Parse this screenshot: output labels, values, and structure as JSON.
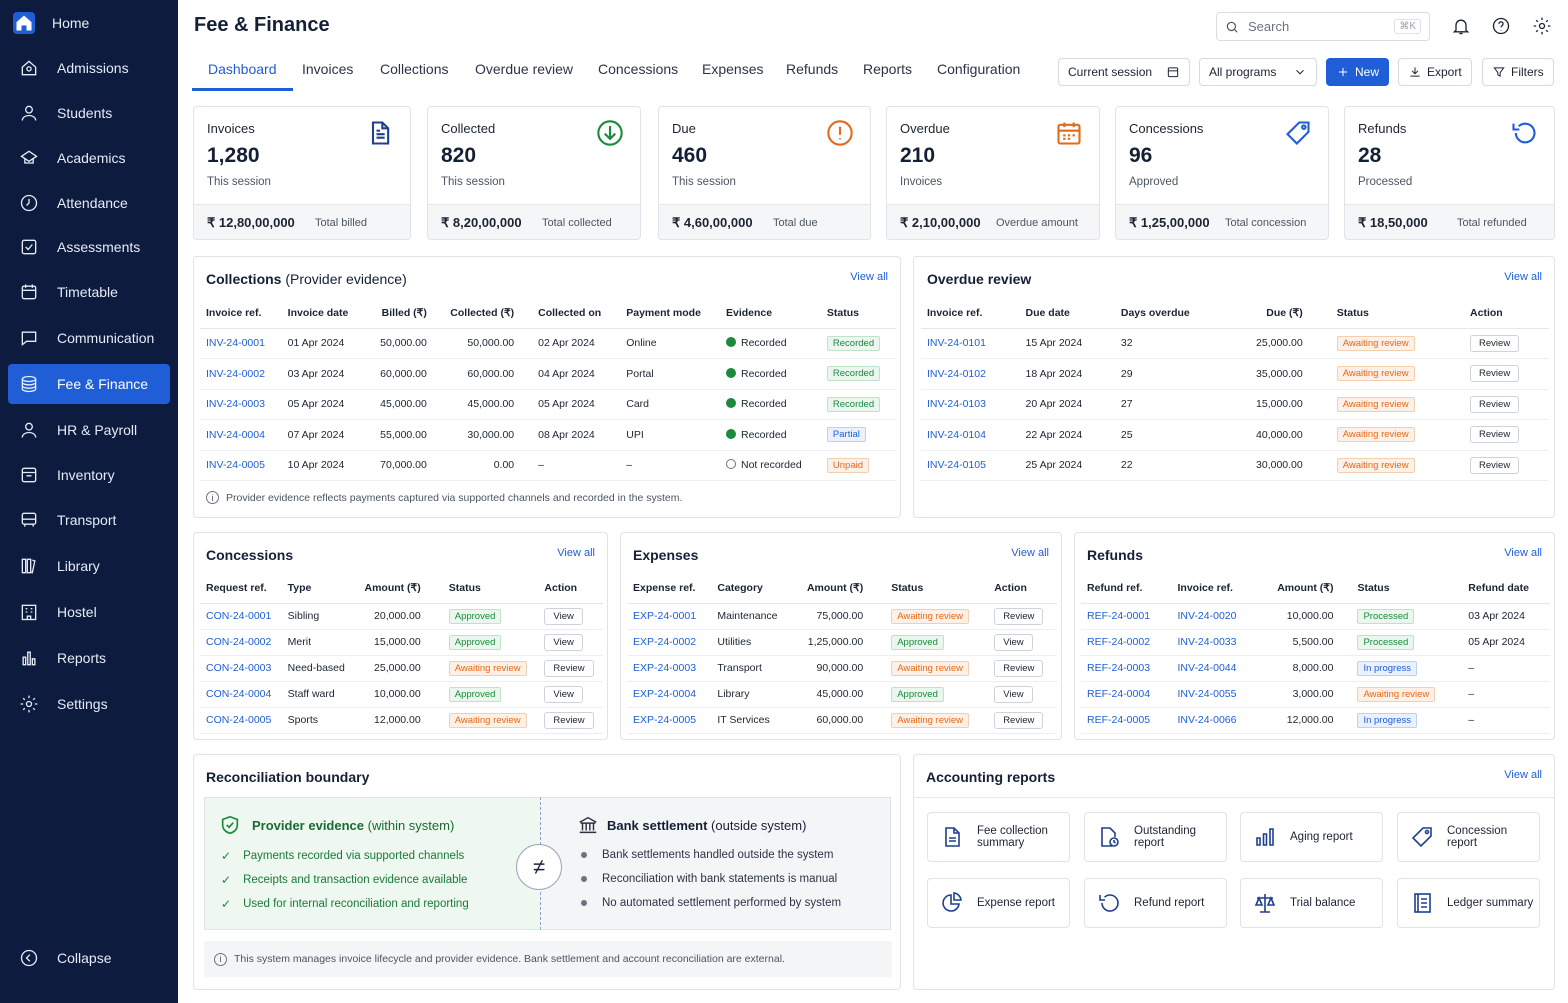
{
  "sidebar": {
    "items": [
      {
        "label": "Home",
        "icon": "home-icon"
      },
      {
        "label": "Admissions",
        "icon": "admissions-icon"
      },
      {
        "label": "Students",
        "icon": "students-icon"
      },
      {
        "label": "Academics",
        "icon": "academics-icon"
      },
      {
        "label": "Attendance",
        "icon": "attendance-icon"
      },
      {
        "label": "Assessments",
        "icon": "assessments-icon"
      },
      {
        "label": "Timetable",
        "icon": "calendar-icon"
      },
      {
        "label": "Communication",
        "icon": "chat-icon"
      },
      {
        "label": "Fee & Finance",
        "icon": "coins-icon"
      },
      {
        "label": "HR & Payroll",
        "icon": "user-icon"
      },
      {
        "label": "Inventory",
        "icon": "inventory-icon"
      },
      {
        "label": "Transport",
        "icon": "bus-icon"
      },
      {
        "label": "Library",
        "icon": "library-icon"
      },
      {
        "label": "Hostel",
        "icon": "hostel-icon"
      },
      {
        "label": "Reports",
        "icon": "bar-chart-icon"
      },
      {
        "label": "Settings",
        "icon": "gear-icon"
      }
    ],
    "collapse": "Collapse"
  },
  "header": {
    "title": "Fee & Finance",
    "search_placeholder": "Search",
    "search_shortcut": "⌘K"
  },
  "tabs": [
    "Dashboard",
    "Invoices",
    "Collections",
    "Overdue review",
    "Concessions",
    "Expenses",
    "Refunds",
    "Reports",
    "Configuration"
  ],
  "controls": {
    "session": "Current session",
    "programs": "All programs",
    "new": "New",
    "export": "Export",
    "filters": "Filters"
  },
  "kpis": [
    {
      "label": "Invoices",
      "value": "1,280",
      "sub": "This session",
      "amount": "₹ 12,80,00,000",
      "foot": "Total billed",
      "icon": "document-icon",
      "color": "#1f3f8f"
    },
    {
      "label": "Collected",
      "value": "820",
      "sub": "This session",
      "amount": "₹ 8,20,00,000",
      "foot": "Total collected",
      "icon": "download-circle-icon",
      "color": "#1b8a3c"
    },
    {
      "label": "Due",
      "value": "460",
      "sub": "This session",
      "amount": "₹ 4,60,00,000",
      "foot": "Total due",
      "icon": "alert-circle-icon",
      "color": "#e36a1a"
    },
    {
      "label": "Overdue",
      "value": "210",
      "sub": "Invoices",
      "amount": "₹ 2,10,00,000",
      "foot": "Overdue amount",
      "icon": "calendar-icon",
      "color": "#e36a1a"
    },
    {
      "label": "Concessions",
      "value": "96",
      "sub": "Approved",
      "amount": "₹ 1,25,00,000",
      "foot": "Total concession",
      "icon": "tag-icon",
      "color": "#1f5ed6"
    },
    {
      "label": "Refunds",
      "value": "28",
      "sub": "Processed",
      "amount": "₹ 18,50,000",
      "foot": "Total refunded",
      "icon": "refund-icon",
      "color": "#1f5ed6"
    }
  ],
  "collections": {
    "title": "Collections",
    "title_sub": "(Provider evidence)",
    "view_all": "View all",
    "headers": [
      "Invoice ref.",
      "Invoice date",
      "Billed (₹)",
      "Collected (₹)",
      "Collected on",
      "Payment mode",
      "Evidence",
      "Status"
    ],
    "rows": [
      [
        "INV-24-0001",
        "01 Apr 2024",
        "50,000.00",
        "50,000.00",
        "02 Apr 2024",
        "Online",
        "Recorded",
        "Recorded"
      ],
      [
        "INV-24-0002",
        "03 Apr 2024",
        "60,000.00",
        "60,000.00",
        "04 Apr 2024",
        "Portal",
        "Recorded",
        "Recorded"
      ],
      [
        "INV-24-0003",
        "05 Apr 2024",
        "45,000.00",
        "45,000.00",
        "05 Apr 2024",
        "Card",
        "Recorded",
        "Recorded"
      ],
      [
        "INV-24-0004",
        "07 Apr 2024",
        "55,000.00",
        "30,000.00",
        "08 Apr 2024",
        "UPI",
        "Recorded",
        "Partial"
      ],
      [
        "INV-24-0005",
        "10 Apr 2024",
        "70,000.00",
        "0.00",
        "–",
        "–",
        "Not recorded",
        "Unpaid"
      ]
    ],
    "note": "Provider evidence reflects payments captured via supported channels and recorded in the system."
  },
  "overdue": {
    "title": "Overdue review",
    "view_all": "View all",
    "headers": [
      "Invoice ref.",
      "Due date",
      "Days overdue",
      "Due (₹)",
      "Status",
      "Action"
    ],
    "rows": [
      [
        "INV-24-0101",
        "15 Apr 2024",
        "32",
        "25,000.00",
        "Awaiting review",
        "Review"
      ],
      [
        "INV-24-0102",
        "18 Apr 2024",
        "29",
        "35,000.00",
        "Awaiting review",
        "Review"
      ],
      [
        "INV-24-0103",
        "20 Apr 2024",
        "27",
        "15,000.00",
        "Awaiting review",
        "Review"
      ],
      [
        "INV-24-0104",
        "22 Apr 2024",
        "25",
        "40,000.00",
        "Awaiting review",
        "Review"
      ],
      [
        "INV-24-0105",
        "25 Apr 2024",
        "22",
        "30,000.00",
        "Awaiting review",
        "Review"
      ]
    ]
  },
  "concessions": {
    "title": "Concessions",
    "view_all": "View all",
    "headers": [
      "Request ref.",
      "Type",
      "Amount (₹)",
      "Status",
      "Action"
    ],
    "rows": [
      [
        "CON-24-0001",
        "Sibling",
        "20,000.00",
        "Approved",
        "View"
      ],
      [
        "CON-24-0002",
        "Merit",
        "15,000.00",
        "Approved",
        "View"
      ],
      [
        "CON-24-0003",
        "Need-based",
        "25,000.00",
        "Awaiting review",
        "Review"
      ],
      [
        "CON-24-0004",
        "Staff ward",
        "10,000.00",
        "Approved",
        "View"
      ],
      [
        "CON-24-0005",
        "Sports",
        "12,000.00",
        "Awaiting review",
        "Review"
      ]
    ]
  },
  "expenses": {
    "title": "Expenses",
    "view_all": "View all",
    "headers": [
      "Expense ref.",
      "Category",
      "Amount (₹)",
      "Status",
      "Action"
    ],
    "rows": [
      [
        "EXP-24-0001",
        "Maintenance",
        "75,000.00",
        "Awaiting review",
        "Review"
      ],
      [
        "EXP-24-0002",
        "Utilities",
        "1,25,000.00",
        "Approved",
        "View"
      ],
      [
        "EXP-24-0003",
        "Transport",
        "90,000.00",
        "Awaiting review",
        "Review"
      ],
      [
        "EXP-24-0004",
        "Library",
        "45,000.00",
        "Approved",
        "View"
      ],
      [
        "EXP-24-0005",
        "IT Services",
        "60,000.00",
        "Awaiting review",
        "Review"
      ]
    ]
  },
  "refunds": {
    "title": "Refunds",
    "view_all": "View all",
    "headers": [
      "Refund ref.",
      "Invoice ref.",
      "Amount (₹)",
      "Status",
      "Refund date"
    ],
    "rows": [
      [
        "REF-24-0001",
        "INV-24-0020",
        "10,000.00",
        "Processed",
        "03 Apr 2024"
      ],
      [
        "REF-24-0002",
        "INV-24-0033",
        "5,500.00",
        "Processed",
        "05 Apr 2024"
      ],
      [
        "REF-24-0003",
        "INV-24-0044",
        "8,000.00",
        "In progress",
        "–"
      ],
      [
        "REF-24-0004",
        "INV-24-0055",
        "3,000.00",
        "Awaiting review",
        "–"
      ],
      [
        "REF-24-0005",
        "INV-24-0066",
        "12,000.00",
        "In progress",
        "–"
      ]
    ]
  },
  "reconciliation": {
    "title": "Reconciliation boundary",
    "provider_title": "Provider evidence",
    "provider_sub": "(within system)",
    "provider_points": [
      "Payments recorded via supported channels",
      "Receipts and transaction evidence available",
      "Used for internal reconciliation and reporting"
    ],
    "bank_title": "Bank settlement",
    "bank_sub": "(outside system)",
    "bank_points": [
      "Bank settlements handled outside the system",
      "Reconciliation with bank statements is manual",
      "No automated settlement performed by system"
    ],
    "neq": "≠",
    "note": "This system manages invoice lifecycle and provider evidence. Bank settlement and account reconciliation are external."
  },
  "accounting": {
    "title": "Accounting reports",
    "view_all": "View all",
    "reports": [
      {
        "label": "Fee collection summary",
        "icon": "document-icon"
      },
      {
        "label": "Outstanding report",
        "icon": "document-clock-icon"
      },
      {
        "label": "Aging report",
        "icon": "bar-chart-icon"
      },
      {
        "label": "Concession report",
        "icon": "tag-icon"
      },
      {
        "label": "Expense report",
        "icon": "pie-chart-icon"
      },
      {
        "label": "Refund report",
        "icon": "refund-icon"
      },
      {
        "label": "Trial balance",
        "icon": "scale-icon"
      },
      {
        "label": "Ledger summary",
        "icon": "ledger-icon"
      }
    ]
  },
  "colors": {
    "accent": "#1f5ed6",
    "sidebar": "#0d1b3e",
    "success": "#1b8a3c",
    "warning": "#e36a1a"
  }
}
